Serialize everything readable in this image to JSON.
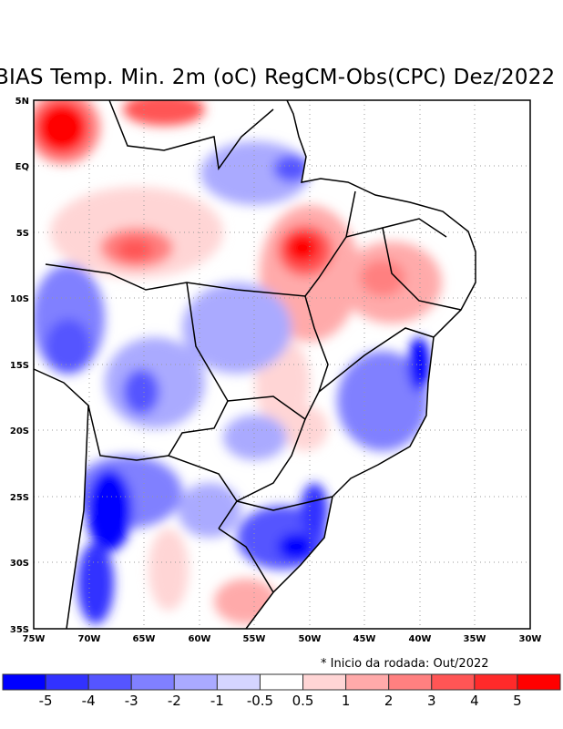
{
  "title": "BIAS Temp. Min. 2m (oC) RegCM-Obs(CPC) Dez/2022",
  "note": "* Inicio da rodada: Out/2022",
  "lat_labels": [
    "5N",
    "EQ",
    "5S",
    "10S",
    "15S",
    "20S",
    "25S",
    "30S",
    "35S"
  ],
  "lon_labels": [
    "75W",
    "70W",
    "65W",
    "60W",
    "55W",
    "50W",
    "45W",
    "40W",
    "35W",
    "30W"
  ],
  "colorbar": {
    "labels": [
      "-5",
      "-4",
      "-3",
      "-2",
      "-1",
      "-0.5",
      "0.5",
      "1",
      "2",
      "3",
      "4",
      "5"
    ],
    "colors": [
      "#0000ff",
      "#3232ff",
      "#5555ff",
      "#8080ff",
      "#aaaaff",
      "#d5d5ff",
      "#ffffff",
      "#ffd5d5",
      "#ffaaaa",
      "#ff8080",
      "#ff5555",
      "#ff2a2a",
      "#ff0000"
    ]
  }
}
